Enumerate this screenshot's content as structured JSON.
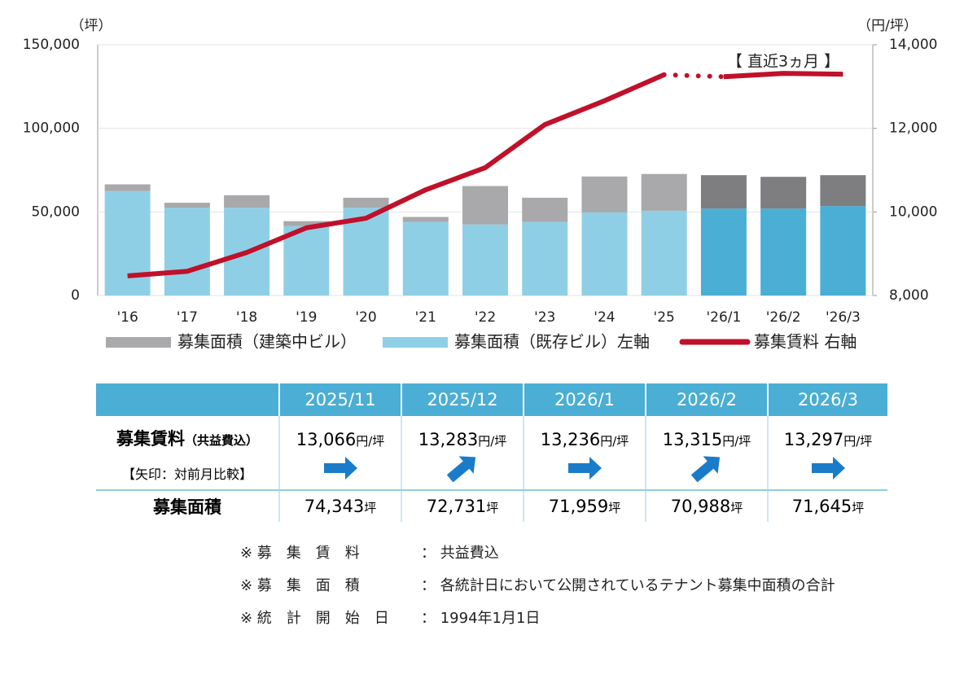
{
  "chart_data": {
    "type": "bar_line",
    "y_unit": "（坪）",
    "y2_unit": "（円/坪）",
    "categories": [
      "'16",
      "'17",
      "'18",
      "'19",
      "'20",
      "'21",
      "'22",
      "'23",
      "'24",
      "'25",
      "'26/1",
      "'26/2",
      "'26/3"
    ],
    "series": [
      {
        "name": "募集面積（既存ビル）左軸",
        "type": "bar",
        "color": "#8fcfe6",
        "recent_color": "#4aaed5",
        "values": [
          62500,
          52500,
          52500,
          41500,
          52500,
          44000,
          42500,
          44000,
          49700,
          50700,
          52000,
          52000,
          53500
        ]
      },
      {
        "name": "募集面積（建築中ビル）",
        "type": "bar",
        "color": "#a9a8aa",
        "recent_color": "#7e7d80",
        "values": [
          4000,
          3000,
          7500,
          3000,
          6000,
          3000,
          23000,
          14500,
          21500,
          22000,
          20000,
          19000,
          18500
        ]
      },
      {
        "name": "募集賃料 右軸",
        "type": "line",
        "axis": "y2",
        "color": "#c0102a",
        "values": [
          8470,
          8580,
          9030,
          9620,
          9850,
          10530,
          11060,
          12090,
          12660,
          13283,
          13236,
          13315,
          13297
        ]
      }
    ],
    "annotation": "【 直近3ヵ月 】",
    "ylim": [
      0,
      150000
    ],
    "yticks": [
      0,
      {
        "value": 50000,
        "label": "50,000"
      },
      {
        "value": 100000,
        "label": "100,000"
      },
      {
        "value": 150000,
        "label": "150,000"
      }
    ],
    "y2lim": [
      8000,
      14000
    ],
    "y2ticks": [
      {
        "value": 8000,
        "label": "8,000"
      },
      {
        "value": 10000,
        "label": "10,000"
      },
      {
        "value": 12000,
        "label": "12,000"
      },
      {
        "value": 14000,
        "label": "14,000"
      }
    ]
  },
  "table": {
    "columns": [
      "2025/11",
      "2025/12",
      "2026/1",
      "2026/2",
      "2026/3"
    ],
    "rent_label": "募集賃料",
    "rent_sub": "（共益費込）",
    "arrow_note": "【矢印：対前月比較】",
    "rent_unit": "円/坪",
    "rent": [
      "13,066",
      "13,283",
      "13,236",
      "13,315",
      "13,297"
    ],
    "trend": [
      "flat",
      "up",
      "flat",
      "up",
      "flat"
    ],
    "area_label": "募集面積",
    "area_unit": "坪",
    "area": [
      "74,343",
      "72,731",
      "71,959",
      "70,988",
      "71,645"
    ]
  },
  "notes": [
    {
      "label": "※ 募　集　賃　料",
      "text": "：  共益費込"
    },
    {
      "label": "※ 募　集　面　積",
      "text": "：  各統計日において公開されているテナント募集中面積の合計"
    },
    {
      "label": "※ 統　計　開　始　日",
      "text": "：  1994年1月1日"
    }
  ]
}
